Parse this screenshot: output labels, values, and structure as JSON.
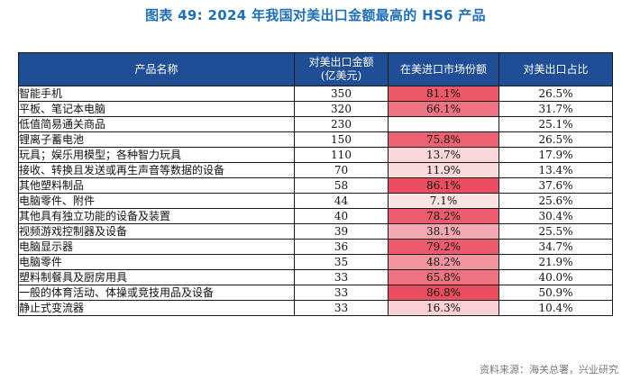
{
  "title": "图表 49: 2024 年我国对美出口金额最高的 HS6 产品",
  "table": {
    "headers": [
      "产品名称",
      "对美出口金额\n(亿美元)",
      "在美进口市场份额",
      "对美出口占比"
    ],
    "rows": [
      {
        "name": "智能手机",
        "export": "350",
        "share": "81.1%",
        "share_value": 81.1,
        "ratio": "26.5%"
      },
      {
        "name": "平板、笔记本电脑",
        "export": "320",
        "share": "66.1%",
        "share_value": 66.1,
        "ratio": "31.7%"
      },
      {
        "name": "低值简易通关商品",
        "export": "230",
        "share": "",
        "share_value": null,
        "ratio": "25.1%"
      },
      {
        "name": "锂离子蓄电池",
        "export": "150",
        "share": "75.8%",
        "share_value": 75.8,
        "ratio": "26.5%"
      },
      {
        "name": "玩具；娱乐用模型；各种智力玩具",
        "export": "110",
        "share": "13.7%",
        "share_value": 13.7,
        "ratio": "17.9%"
      },
      {
        "name": "接收、转换且发送或再生声音等数据的设备",
        "export": "70",
        "share": "11.9%",
        "share_value": 11.9,
        "ratio": "13.4%"
      },
      {
        "name": "其他塑料制品",
        "export": "58",
        "share": "86.1%",
        "share_value": 86.1,
        "ratio": "37.6%"
      },
      {
        "name": "电脑零件、附件",
        "export": "44",
        "share": "7.1%",
        "share_value": 7.1,
        "ratio": "25.6%"
      },
      {
        "name": "其他具有独立功能的设备及装置",
        "export": "40",
        "share": "78.2%",
        "share_value": 78.2,
        "ratio": "30.4%"
      },
      {
        "name": "视频游戏控制器及设备",
        "export": "39",
        "share": "38.1%",
        "share_value": 38.1,
        "ratio": "25.5%"
      },
      {
        "name": "电脑显示器",
        "export": "36",
        "share": "79.2%",
        "share_value": 79.2,
        "ratio": "34.7%"
      },
      {
        "name": "电脑零件",
        "export": "35",
        "share": "48.2%",
        "share_value": 48.2,
        "ratio": "21.9%"
      },
      {
        "name": "塑料制餐具及厨房用具",
        "export": "33",
        "share": "65.8%",
        "share_value": 65.8,
        "ratio": "40.0%"
      },
      {
        "name": "一般的体育活动、体操或竞技用品及设备",
        "export": "33",
        "share": "86.8%",
        "share_value": 86.8,
        "ratio": "50.9%"
      },
      {
        "name": "静止式变流器",
        "export": "33",
        "share": "16.3%",
        "share_value": 16.3,
        "ratio": "10.4%"
      }
    ]
  },
  "colors": {
    "header_bg": "#1f4e96",
    "title": "#1f6fb5",
    "heat_low": "#fdf0f0",
    "heat_high": "#e8475a"
  },
  "source": "资料来源：海关总署，兴业研究"
}
